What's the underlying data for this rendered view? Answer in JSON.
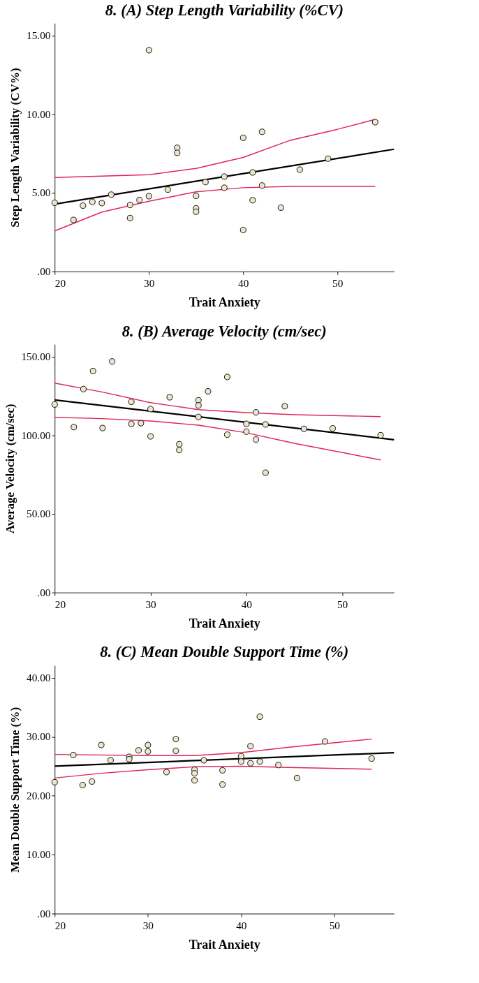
{
  "chart_data": [
    {
      "type": "scatter",
      "title": "8. (A) Step Length Variability (%CV)",
      "xlabel": "Trait Anxiety",
      "ylabel": "Step Length Variability (CV%)",
      "grid": false,
      "x": [
        20,
        22,
        23,
        24,
        25,
        26,
        28,
        28,
        29,
        30,
        30,
        32,
        33,
        33,
        35,
        35,
        35,
        36,
        38,
        38,
        40,
        40,
        41,
        41,
        42,
        42,
        44,
        46,
        49,
        54
      ],
      "xlim": [
        20,
        56
      ],
      "xticks": [
        20,
        30,
        40,
        50
      ],
      "ylim": [
        0,
        15.8
      ],
      "yticks": [
        {
          "value": 0,
          "label": ".00"
        },
        {
          "value": 5,
          "label": "5.00"
        },
        {
          "value": 10,
          "label": "10.00"
        },
        {
          "value": 15,
          "label": "15.00"
        }
      ],
      "series": [
        {
          "marker": "circle",
          "color": "#ece4cc",
          "values": [
            4.37,
            3.28,
            4.19,
            4.43,
            4.35,
            4.89,
            4.23,
            3.4,
            4.55,
            14.08,
            4.79,
            5.21,
            7.87,
            7.55,
            4.81,
            4.02,
            3.8,
            5.69,
            6.04,
            5.33,
            8.51,
            2.64,
            6.3,
            4.53,
            8.89,
            5.47,
            4.06,
            6.48,
            7.18,
            9.5
          ]
        },
        {
          "type": "line",
          "color": "#000000",
          "x": [
            20,
            56
          ],
          "values": [
            4.29,
            7.78
          ]
        },
        {
          "type": "line",
          "color": "#e0245a",
          "x": [
            20,
            30,
            35,
            40,
            45,
            50,
            54
          ],
          "values": [
            5.98,
            6.16,
            6.56,
            7.26,
            8.35,
            9.05,
            9.68
          ]
        },
        {
          "type": "line",
          "color": "#e0245a",
          "x": [
            20,
            25,
            30,
            35,
            40,
            45,
            54
          ],
          "values": [
            2.58,
            3.78,
            4.47,
            5.07,
            5.33,
            5.41,
            5.41
          ]
        }
      ]
    },
    {
      "type": "scatter",
      "title": "8. (B) Average Velocity (cm/sec)",
      "xlabel": "Trait Anxiety",
      "ylabel": "Average Velocity (cm/sec)",
      "grid": false,
      "x": [
        20,
        22,
        23,
        24,
        25,
        26,
        28,
        28,
        29,
        30,
        30,
        32,
        33,
        33,
        35,
        35,
        35,
        36,
        38,
        38,
        40,
        40,
        41,
        41,
        42,
        42,
        44,
        46,
        49,
        54
      ],
      "xlim": [
        20,
        55.4
      ],
      "xticks": [
        20,
        30,
        40,
        50
      ],
      "ylim": [
        0,
        158
      ],
      "yticks": [
        {
          "value": 0,
          "label": ".00"
        },
        {
          "value": 50,
          "label": "50.00"
        },
        {
          "value": 100,
          "label": "100.00"
        },
        {
          "value": 150,
          "label": "150.00"
        }
      ],
      "series": [
        {
          "marker": "circle",
          "color": "#ece4cc",
          "values": [
            119.7,
            105.3,
            129.5,
            141.0,
            104.7,
            147.1,
            121.4,
            107.4,
            107.8,
            116.8,
            99.4,
            124.3,
            94.4,
            90.7,
            122.4,
            119.1,
            111.8,
            128.1,
            137.2,
            100.5,
            107.4,
            102.4,
            114.7,
            97.4,
            107.0,
            76.3,
            118.6,
            104.2,
            104.5,
            100.1
          ]
        },
        {
          "type": "line",
          "color": "#000000",
          "x": [
            20,
            55.4
          ],
          "values": [
            122.6,
            97.3
          ]
        },
        {
          "type": "line",
          "color": "#e0245a",
          "x": [
            20,
            25,
            30,
            35,
            40,
            45,
            54
          ],
          "values": [
            133.3,
            127.6,
            120.9,
            116.4,
            114.5,
            113.2,
            112.0
          ]
        },
        {
          "type": "line",
          "color": "#e0245a",
          "x": [
            20,
            25,
            30,
            35,
            40,
            45,
            54
          ],
          "values": [
            111.5,
            110.7,
            109.2,
            106.5,
            101.7,
            95.0,
            84.4
          ]
        }
      ]
    },
    {
      "type": "scatter",
      "title": "8. (C) Mean Double Support Time (%)",
      "xlabel": "Trait Anxiety",
      "ylabel": "Mean Double Support Time (%)",
      "grid": false,
      "x": [
        20,
        22,
        23,
        24,
        25,
        26,
        28,
        28,
        29,
        30,
        30,
        32,
        33,
        33,
        35,
        35,
        35,
        36,
        38,
        38,
        40,
        40,
        41,
        41,
        42,
        42,
        44,
        46,
        49,
        54
      ],
      "xlim": [
        20,
        56.4
      ],
      "xticks": [
        20,
        30,
        40,
        50
      ],
      "ylim": [
        0,
        42.1
      ],
      "yticks": [
        {
          "value": 0,
          "label": ".00"
        },
        {
          "value": 10,
          "label": "10.00"
        },
        {
          "value": 20,
          "label": "20.00"
        },
        {
          "value": 30,
          "label": "30.00"
        },
        {
          "value": 40,
          "label": "40.00"
        }
      ],
      "series": [
        {
          "marker": "circle",
          "color": "#ece4cc",
          "values": [
            22.3,
            26.9,
            21.8,
            22.4,
            28.6,
            26.0,
            26.6,
            26.2,
            27.7,
            28.6,
            27.5,
            24.0,
            29.6,
            27.6,
            24.4,
            23.8,
            22.6,
            26.0,
            24.3,
            21.9,
            26.7,
            25.8,
            28.4,
            25.5,
            33.4,
            25.8,
            25.2,
            23.0,
            29.2,
            26.3
          ]
        },
        {
          "type": "line",
          "color": "#000000",
          "x": [
            20,
            56.4
          ],
          "values": [
            25.0,
            27.3
          ]
        },
        {
          "type": "line",
          "color": "#e0245a",
          "x": [
            20,
            30,
            35,
            40,
            45,
            54
          ],
          "values": [
            27.0,
            26.8,
            26.8,
            27.3,
            28.2,
            29.6
          ]
        },
        {
          "type": "line",
          "color": "#e0245a",
          "x": [
            20,
            25,
            30,
            35,
            40,
            45,
            54
          ],
          "values": [
            23.0,
            23.8,
            24.4,
            24.9,
            25.0,
            24.8,
            24.5
          ]
        }
      ]
    }
  ]
}
